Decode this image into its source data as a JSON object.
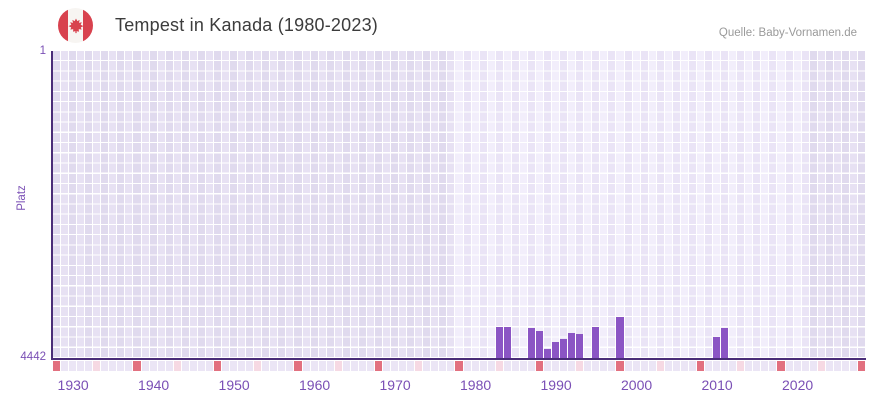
{
  "header": {
    "title": "Tempest in Kanada (1980-2023)",
    "source": "Quelle: Baby-Vornamen.de",
    "flag_icon": "canada-flag-round"
  },
  "chart_data": {
    "type": "bar",
    "title": "Tempest in Kanada (1980-2023)",
    "name": "Tempest",
    "country": "Kanada",
    "ylabel": "Platz",
    "y_axis": {
      "top_label": "1",
      "bottom_label": "4442",
      "min": 1,
      "max": 4442,
      "inverted": true
    },
    "x_axis": {
      "start_year": 1928,
      "end_year": 2028,
      "tick_years": [
        1930,
        1940,
        1950,
        1960,
        1970,
        1980,
        1990,
        2000,
        2010,
        2020
      ]
    },
    "highlight_range": {
      "from": 1978,
      "to": 2021
    },
    "grid": true,
    "legend": "none",
    "series": [
      {
        "name": "Platz",
        "points": [
          {
            "year": 1983,
            "rank": 3990
          },
          {
            "year": 1984,
            "rank": 3992
          },
          {
            "year": 1987,
            "rank": 4008
          },
          {
            "year": 1988,
            "rank": 4050
          },
          {
            "year": 1989,
            "rank": 4312
          },
          {
            "year": 1990,
            "rank": 4210
          },
          {
            "year": 1991,
            "rank": 4172
          },
          {
            "year": 1992,
            "rank": 4076
          },
          {
            "year": 1993,
            "rank": 4098
          },
          {
            "year": 1995,
            "rank": 3998
          },
          {
            "year": 1998,
            "rank": 3853
          },
          {
            "year": 2010,
            "rank": 4134
          },
          {
            "year": 2011,
            "rank": 4008
          }
        ]
      }
    ],
    "timeline_strip": {
      "red_years_ending_in": 8,
      "pink_years_ending_in": 3
    }
  },
  "colors": {
    "bar": "#8b55c4",
    "axis_line": "#4a2d78",
    "tick_label": "#7a4fb5",
    "title_text": "#3c3c3c",
    "source_text": "#9a9a9a",
    "cell_dark_a": "#e0daee",
    "cell_dark_b": "#e7e1f3",
    "cell_light_a": "#f2eefb",
    "cell_light_b": "#eae4f6",
    "strip_default": "#ebe5f5",
    "strip_pink": "#f6d9e3",
    "strip_red": "#e2707f",
    "flag_red": "#d8424e",
    "flag_white": "#f7f5f2"
  }
}
